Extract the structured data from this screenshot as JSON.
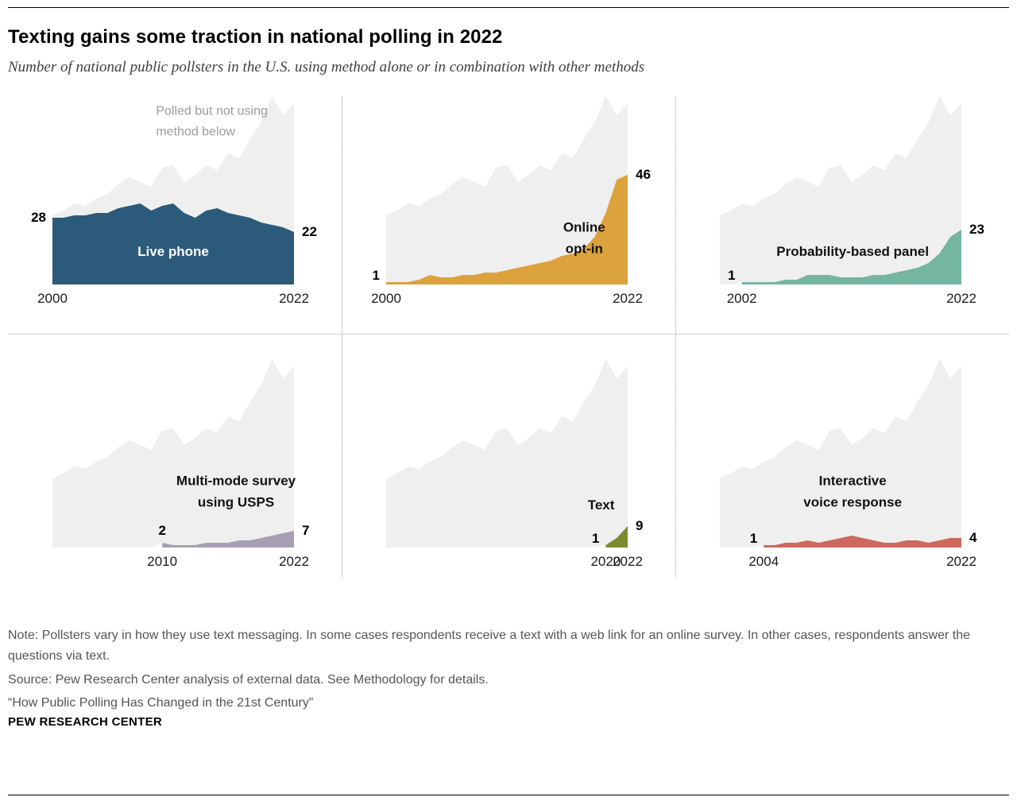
{
  "header": {
    "title": "Texting gains some traction in national polling in 2022",
    "subtitle": "Number of national public pollsters in the U.S. using method alone or in combination with other methods"
  },
  "chart_data": {
    "type": "area",
    "layout": "small-multiples-2x3",
    "x_domain": [
      2000,
      2022
    ],
    "ymax": 80,
    "years": [
      2000,
      2001,
      2002,
      2003,
      2004,
      2005,
      2006,
      2007,
      2008,
      2009,
      2010,
      2011,
      2012,
      2013,
      2014,
      2015,
      2016,
      2017,
      2018,
      2019,
      2020,
      2021,
      2022
    ],
    "background": {
      "name": "Polled but not using method below",
      "color": "#efefef",
      "values": [
        29,
        31,
        34,
        33,
        36,
        38,
        42,
        45,
        43,
        41,
        49,
        50,
        43,
        46,
        50,
        48,
        55,
        53,
        61,
        68,
        79,
        71,
        76
      ]
    },
    "series": {
      "live_phone": [
        28,
        28,
        29,
        29,
        30,
        30,
        32,
        33,
        34,
        31,
        33,
        34,
        30,
        28,
        31,
        32,
        30,
        29,
        28,
        26,
        25,
        24,
        22
      ],
      "online_opt_in": [
        1,
        1,
        1,
        2,
        4,
        3,
        3,
        4,
        4,
        5,
        5,
        6,
        7,
        8,
        9,
        10,
        12,
        13,
        15,
        20,
        30,
        44,
        46
      ],
      "probability_panel": [
        null,
        null,
        1,
        1,
        1,
        1,
        2,
        2,
        4,
        4,
        4,
        3,
        3,
        3,
        4,
        4,
        5,
        6,
        7,
        9,
        13,
        20,
        23
      ],
      "usps": [
        null,
        null,
        null,
        null,
        null,
        null,
        null,
        null,
        null,
        null,
        2,
        1,
        1,
        1,
        2,
        2,
        2,
        3,
        3,
        4,
        5,
        6,
        7
      ],
      "text": [
        null,
        null,
        null,
        null,
        null,
        null,
        null,
        null,
        null,
        null,
        null,
        null,
        null,
        null,
        null,
        null,
        null,
        null,
        null,
        null,
        1,
        4,
        9
      ],
      "ivr": [
        null,
        null,
        null,
        null,
        1,
        1,
        2,
        2,
        3,
        2,
        3,
        4,
        5,
        4,
        3,
        2,
        2,
        3,
        3,
        2,
        3,
        4,
        4
      ]
    },
    "panels": [
      {
        "key": "live_phone",
        "name_lines": [
          "Live phone"
        ],
        "name_color": "#ffffff",
        "name_pos": {
          "x": 50,
          "y": 83
        },
        "color": "#2b5a7b",
        "start_year": 2000,
        "start_value": 28,
        "end_value": 22,
        "axis_start": "2000",
        "axis_start_year": 2000,
        "axis_end": "2022",
        "start_placement": "left",
        "annotation_lines": [
          "Polled but not using",
          "method below"
        ],
        "annotation_pos": {
          "x": 66,
          "y": 15
        }
      },
      {
        "key": "online_opt_in",
        "name_lines": [
          "Online",
          "opt-in"
        ],
        "name_color": "#111111",
        "name_pos": {
          "x": 82,
          "y": 76
        },
        "color": "#dca23c",
        "start_year": 2000,
        "start_value": 1,
        "end_value": 46,
        "axis_start": "2000",
        "axis_start_year": 2000,
        "axis_end": "2022",
        "start_placement": "left"
      },
      {
        "key": "probability_panel",
        "name_lines": [
          "Probability-based panel"
        ],
        "name_color": "#111111",
        "name_pos": {
          "x": 55,
          "y": 83
        },
        "color": "#74b6a0",
        "start_year": 2002,
        "start_value": 1,
        "end_value": 23,
        "axis_start": "2002",
        "axis_start_year": 2002,
        "axis_end": "2022",
        "start_placement": "left"
      },
      {
        "key": "usps",
        "name_lines": [
          "Multi-mode survey",
          "using USPS"
        ],
        "name_color": "#111111",
        "name_pos": {
          "x": 76,
          "y": 71
        },
        "color": "#a69fb4",
        "start_year": 2010,
        "start_value": 2,
        "end_value": 7,
        "axis_start": "2010",
        "axis_start_year": 2010,
        "axis_end": "2022",
        "start_placement": "above"
      },
      {
        "key": "text",
        "name_lines": [
          "Text"
        ],
        "name_color": "#111111",
        "name_pos": {
          "x": 89,
          "y": 78
        },
        "color": "#7e8b2f",
        "start_year": 2020,
        "start_value": 1,
        "end_value": 9,
        "axis_start": "2020",
        "axis_start_year": 2020,
        "axis_end": "2022",
        "start_placement": "left"
      },
      {
        "key": "ivr",
        "name_lines": [
          "Interactive",
          "voice response"
        ],
        "name_color": "#111111",
        "name_pos": {
          "x": 55,
          "y": 71
        },
        "color": "#cd685e",
        "start_year": 2004,
        "start_value": 1,
        "end_value": 4,
        "axis_start": "2004",
        "axis_start_year": 2004,
        "axis_end": "2022",
        "start_placement": "left"
      }
    ]
  },
  "footer": {
    "note": "Note: Pollsters vary in how they use text messaging. In some cases respondents receive a text with a web link for an online survey. In other cases, respondents answer the questions via text.",
    "source": "Source: Pew Research Center analysis of external data. See Methodology for details.",
    "citation": "“How Public Polling Has Changed in the 21st Century”",
    "brand": "PEW RESEARCH CENTER"
  }
}
